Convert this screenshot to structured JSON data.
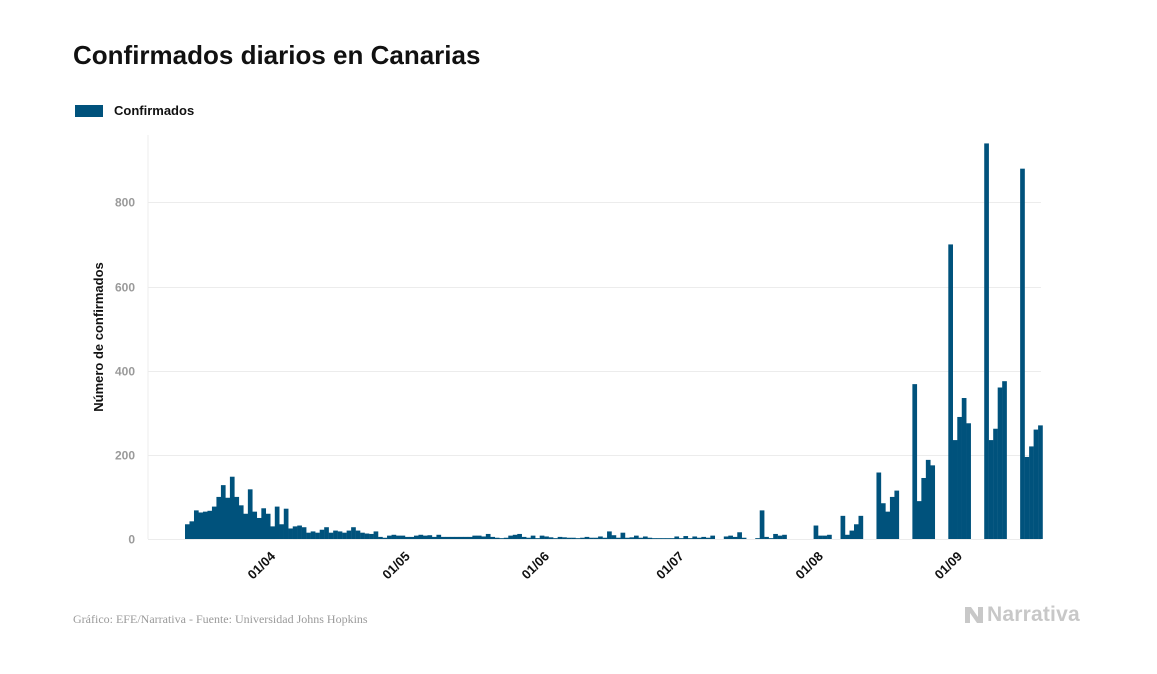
{
  "title": "Confirmados diarios en Canarias",
  "legend": {
    "label": "Confirmados",
    "color": "#00527c"
  },
  "footer": {
    "source": "Gráfico: EFE/Narrativa - Fuente: Universidad Johns Hopkins",
    "brand": "Narrativa"
  },
  "colors": {
    "bar": "#00527c",
    "grid": "#ececec",
    "tick_text": "#9a9a9a",
    "axis_text": "#111111",
    "brand": "#c8c8c8"
  },
  "chart_data": {
    "type": "bar",
    "title": "Confirmados diarios en Canarias",
    "xlabel": "",
    "ylabel": "Número de confirmados",
    "ylim": [
      0,
      960
    ],
    "yticks": [
      0,
      200,
      400,
      600,
      800
    ],
    "grid": true,
    "legend_position": "top-left",
    "x_start_date": "2020-03-14",
    "xticks": [
      {
        "label": "01/04",
        "date": "2020-04-01"
      },
      {
        "label": "01/05",
        "date": "2020-05-01"
      },
      {
        "label": "01/06",
        "date": "2020-06-01"
      },
      {
        "label": "01/07",
        "date": "2020-07-01"
      },
      {
        "label": "01/08",
        "date": "2020-08-01"
      },
      {
        "label": "01/09",
        "date": "2020-09-01"
      }
    ],
    "series": [
      {
        "name": "Confirmados",
        "values": [
          35,
          42,
          68,
          63,
          65,
          67,
          77,
          100,
          128,
          98,
          148,
          100,
          80,
          60,
          118,
          65,
          50,
          73,
          60,
          30,
          77,
          35,
          72,
          25,
          30,
          32,
          28,
          15,
          18,
          15,
          22,
          28,
          15,
          20,
          18,
          15,
          20,
          28,
          20,
          15,
          13,
          12,
          18,
          5,
          3,
          8,
          10,
          8,
          8,
          5,
          5,
          8,
          10,
          8,
          9,
          5,
          10,
          5,
          5,
          5,
          5,
          5,
          5,
          5,
          8,
          8,
          6,
          12,
          5,
          3,
          2,
          3,
          8,
          10,
          12,
          5,
          3,
          8,
          2,
          8,
          6,
          4,
          2,
          5,
          4,
          3,
          3,
          2,
          3,
          5,
          3,
          3,
          6,
          3,
          18,
          9,
          3,
          15,
          3,
          4,
          8,
          3,
          6,
          3,
          2,
          2,
          2,
          2,
          2,
          6,
          2,
          7,
          2,
          6,
          3,
          5,
          3,
          8,
          0,
          0,
          6,
          8,
          5,
          16,
          3,
          0,
          0,
          2,
          68,
          5,
          2,
          12,
          8,
          10,
          0,
          0,
          0,
          0,
          0,
          0,
          32,
          8,
          8,
          10,
          0,
          0,
          55,
          10,
          20,
          35,
          55,
          0,
          0,
          0,
          158,
          85,
          65,
          100,
          115,
          0,
          0,
          0,
          368,
          90,
          145,
          188,
          175,
          0,
          0,
          0,
          700,
          235,
          290,
          335,
          275,
          0,
          0,
          0,
          940,
          235,
          262,
          360,
          375,
          0,
          0,
          0,
          880,
          195,
          220,
          260,
          270
        ]
      }
    ]
  }
}
